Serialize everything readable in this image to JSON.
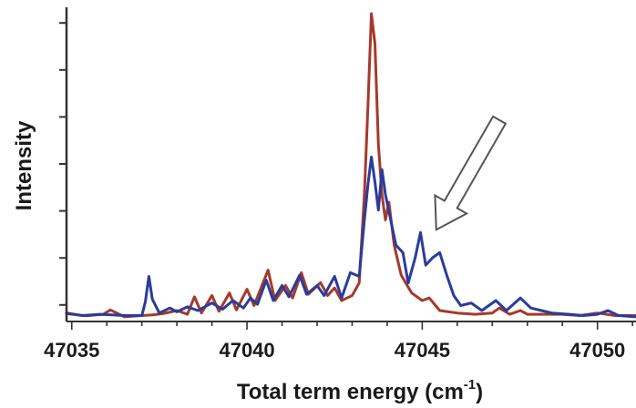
{
  "chart_data": {
    "type": "line",
    "title": "",
    "xlabel": "Total term energy (cm",
    "xlabel_superscript": "-1",
    "xlabel_suffix": ")",
    "ylabel": "Intensity",
    "xlim": [
      47034.85,
      47051.1
    ],
    "ylim": [
      0,
      100
    ],
    "x_ticks": [
      47035,
      47040,
      47045,
      47050
    ],
    "x_tick_labels": [
      "47035",
      "47040",
      "47045",
      "47050"
    ],
    "y_tick_labels_shown": false,
    "legend": "none",
    "grid": false,
    "annotation": "arrow pointing down-left at the blue shoulder near 47045–47045.5 cm-1",
    "arrow": {
      "from": [
        47047.2,
        64
      ],
      "to": [
        47045.4,
        29
      ]
    },
    "series": [
      {
        "color": "#a63a2a",
        "points": [
          [
            47034.85,
            2.2
          ],
          [
            47035.4,
            1.5
          ],
          [
            47035.9,
            2.0
          ],
          [
            47036.1,
            3.4
          ],
          [
            47036.5,
            1.2
          ],
          [
            47037.0,
            1.6
          ],
          [
            47037.3,
            1.8
          ],
          [
            47037.6,
            2.2
          ],
          [
            47038.0,
            3.2
          ],
          [
            47038.3,
            2.0
          ],
          [
            47038.5,
            7.6
          ],
          [
            47038.7,
            2.4
          ],
          [
            47039.0,
            8.0
          ],
          [
            47039.2,
            3.0
          ],
          [
            47039.5,
            8.8
          ],
          [
            47039.7,
            3.4
          ],
          [
            47040.0,
            10.0
          ],
          [
            47040.2,
            4.8
          ],
          [
            47040.6,
            16.1
          ],
          [
            47040.8,
            6.4
          ],
          [
            47041.1,
            11.2
          ],
          [
            47041.3,
            7.2
          ],
          [
            47041.55,
            15.3
          ],
          [
            47041.75,
            8.4
          ],
          [
            47042.1,
            12.1
          ],
          [
            47042.3,
            8.0
          ],
          [
            47042.5,
            10.4
          ],
          [
            47042.7,
            6.4
          ],
          [
            47043.0,
            8.0
          ],
          [
            47043.2,
            12.0
          ],
          [
            47043.35,
            40.2
          ],
          [
            47043.45,
            68.3
          ],
          [
            47043.55,
            98.0
          ],
          [
            47043.65,
            88.4
          ],
          [
            47043.75,
            56.2
          ],
          [
            47043.85,
            40.2
          ],
          [
            47043.95,
            32.1
          ],
          [
            47044.05,
            37.8
          ],
          [
            47044.2,
            24.1
          ],
          [
            47044.4,
            14.5
          ],
          [
            47044.7,
            8.8
          ],
          [
            47045.0,
            6.4
          ],
          [
            47045.2,
            7.2
          ],
          [
            47045.5,
            3.2
          ],
          [
            47046.0,
            2.4
          ],
          [
            47046.5,
            2.0
          ],
          [
            47047.0,
            2.4
          ],
          [
            47047.2,
            4.0
          ],
          [
            47047.5,
            2.0
          ],
          [
            47047.8,
            3.2
          ],
          [
            47048.0,
            2.0
          ],
          [
            47048.5,
            2.0
          ],
          [
            47049.0,
            2.0
          ],
          [
            47049.5,
            1.6
          ],
          [
            47050.0,
            2.4
          ],
          [
            47050.5,
            1.6
          ],
          [
            47051.1,
            1.6
          ]
        ]
      },
      {
        "color": "#2a3c9c",
        "points": [
          [
            47034.85,
            2.4
          ],
          [
            47035.3,
            1.6
          ],
          [
            47035.8,
            2.0
          ],
          [
            47036.5,
            1.6
          ],
          [
            47037.0,
            1.6
          ],
          [
            47037.1,
            6.0
          ],
          [
            47037.2,
            14.1
          ],
          [
            47037.3,
            6.8
          ],
          [
            47037.5,
            2.4
          ],
          [
            47037.8,
            4.0
          ],
          [
            47038.0,
            2.8
          ],
          [
            47038.3,
            4.4
          ],
          [
            47038.6,
            3.2
          ],
          [
            47039.0,
            5.6
          ],
          [
            47039.3,
            3.6
          ],
          [
            47039.6,
            6.4
          ],
          [
            47039.9,
            4.0
          ],
          [
            47040.1,
            7.2
          ],
          [
            47040.3,
            5.2
          ],
          [
            47040.55,
            12.9
          ],
          [
            47040.75,
            6.4
          ],
          [
            47041.0,
            11.2
          ],
          [
            47041.2,
            7.6
          ],
          [
            47041.5,
            14.5
          ],
          [
            47041.7,
            8.4
          ],
          [
            47042.0,
            11.2
          ],
          [
            47042.2,
            8.0
          ],
          [
            47042.5,
            14.1
          ],
          [
            47042.7,
            7.2
          ],
          [
            47042.95,
            15.3
          ],
          [
            47043.2,
            14.1
          ],
          [
            47043.35,
            32.1
          ],
          [
            47043.45,
            43.4
          ],
          [
            47043.55,
            52.2
          ],
          [
            47043.65,
            44.2
          ],
          [
            47043.75,
            35.3
          ],
          [
            47043.85,
            48.2
          ],
          [
            47043.95,
            40.2
          ],
          [
            47044.1,
            32.1
          ],
          [
            47044.25,
            24.1
          ],
          [
            47044.45,
            21.7
          ],
          [
            47044.6,
            12.0
          ],
          [
            47044.8,
            20.1
          ],
          [
            47044.95,
            28.1
          ],
          [
            47045.1,
            17.7
          ],
          [
            47045.3,
            20.1
          ],
          [
            47045.5,
            21.7
          ],
          [
            47045.7,
            14.5
          ],
          [
            47045.9,
            8.0
          ],
          [
            47046.1,
            4.8
          ],
          [
            47046.4,
            5.6
          ],
          [
            47046.7,
            3.2
          ],
          [
            47047.1,
            6.4
          ],
          [
            47047.4,
            3.2
          ],
          [
            47047.8,
            7.2
          ],
          [
            47048.1,
            4.0
          ],
          [
            47048.4,
            3.2
          ],
          [
            47048.7,
            2.4
          ],
          [
            47049.2,
            2.0
          ],
          [
            47049.6,
            1.6
          ],
          [
            47050.0,
            2.0
          ],
          [
            47050.3,
            3.2
          ],
          [
            47050.6,
            1.6
          ],
          [
            47051.1,
            1.2
          ]
        ]
      }
    ]
  }
}
